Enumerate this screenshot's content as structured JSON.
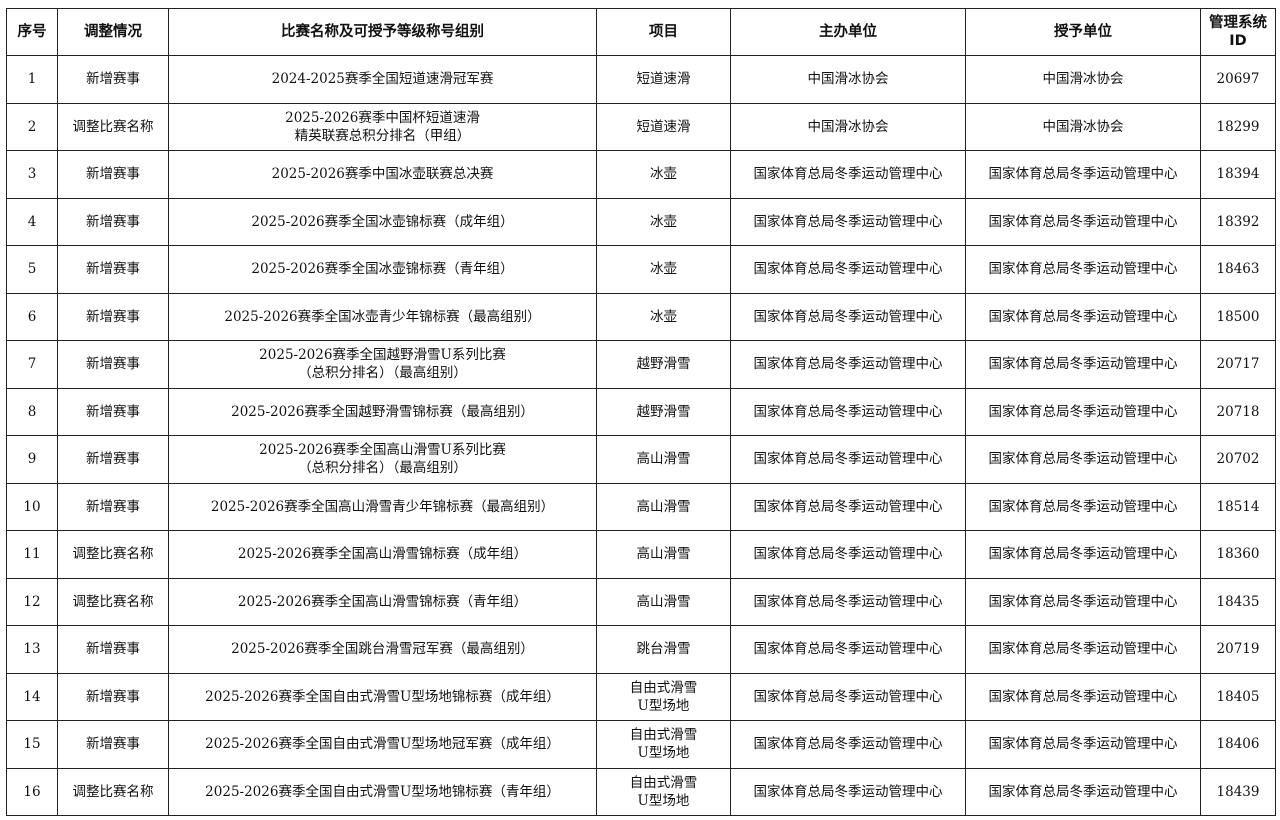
{
  "table": {
    "headers": [
      "序号",
      "调整情况",
      "比赛名称及可授予等级称号组别",
      "项目",
      "主办单位",
      "授予单位",
      "管理系统\nID"
    ],
    "rows": [
      [
        "1",
        "新增赛事",
        "2024-2025赛季全国短道速滑冠军赛",
        "短道速滑",
        "中国滑冰协会",
        "中国滑冰协会",
        "20697"
      ],
      [
        "2",
        "调整比赛名称",
        "2025-2026赛季中国杯短道速滑\n精英联赛总积分排名（甲组）",
        "短道速滑",
        "中国滑冰协会",
        "中国滑冰协会",
        "18299"
      ],
      [
        "3",
        "新增赛事",
        "2025-2026赛季中国冰壶联赛总决赛",
        "冰壶",
        "国家体育总局冬季运动管理中心",
        "国家体育总局冬季运动管理中心",
        "18394"
      ],
      [
        "4",
        "新增赛事",
        "2025-2026赛季全国冰壶锦标赛（成年组）",
        "冰壶",
        "国家体育总局冬季运动管理中心",
        "国家体育总局冬季运动管理中心",
        "18392"
      ],
      [
        "5",
        "新增赛事",
        "2025-2026赛季全国冰壶锦标赛（青年组）",
        "冰壶",
        "国家体育总局冬季运动管理中心",
        "国家体育总局冬季运动管理中心",
        "18463"
      ],
      [
        "6",
        "新增赛事",
        "2025-2026赛季全国冰壶青少年锦标赛（最高组别）",
        "冰壶",
        "国家体育总局冬季运动管理中心",
        "国家体育总局冬季运动管理中心",
        "18500"
      ],
      [
        "7",
        "新增赛事",
        "2025-2026赛季全国越野滑雪U系列比赛\n（总积分排名）（最高组别）",
        "越野滑雪",
        "国家体育总局冬季运动管理中心",
        "国家体育总局冬季运动管理中心",
        "20717"
      ],
      [
        "8",
        "新增赛事",
        "2025-2026赛季全国越野滑雪锦标赛（最高组别）",
        "越野滑雪",
        "国家体育总局冬季运动管理中心",
        "国家体育总局冬季运动管理中心",
        "20718"
      ],
      [
        "9",
        "新增赛事",
        "2025-2026赛季全国高山滑雪U系列比赛\n（总积分排名）（最高组别）",
        "高山滑雪",
        "国家体育总局冬季运动管理中心",
        "国家体育总局冬季运动管理中心",
        "20702"
      ],
      [
        "10",
        "新增赛事",
        "2025-2026赛季全国高山滑雪青少年锦标赛（最高组别）",
        "高山滑雪",
        "国家体育总局冬季运动管理中心",
        "国家体育总局冬季运动管理中心",
        "18514"
      ],
      [
        "11",
        "调整比赛名称",
        "2025-2026赛季全国高山滑雪锦标赛（成年组）",
        "高山滑雪",
        "国家体育总局冬季运动管理中心",
        "国家体育总局冬季运动管理中心",
        "18360"
      ],
      [
        "12",
        "调整比赛名称",
        "2025-2026赛季全国高山滑雪锦标赛（青年组）",
        "高山滑雪",
        "国家体育总局冬季运动管理中心",
        "国家体育总局冬季运动管理中心",
        "18435"
      ],
      [
        "13",
        "新增赛事",
        "2025-2026赛季全国跳台滑雪冠军赛（最高组别）",
        "跳台滑雪",
        "国家体育总局冬季运动管理中心",
        "国家体育总局冬季运动管理中心",
        "20719"
      ],
      [
        "14",
        "新增赛事",
        "2025-2026赛季全国自由式滑雪U型场地锦标赛（成年组）",
        "自由式滑雪\nU型场地",
        "国家体育总局冬季运动管理中心",
        "国家体育总局冬季运动管理中心",
        "18405"
      ],
      [
        "15",
        "新增赛事",
        "2025-2026赛季全国自由式滑雪U型场地冠军赛（成年组）",
        "自由式滑雪\nU型场地",
        "国家体育总局冬季运动管理中心",
        "国家体育总局冬季运动管理中心",
        "18406"
      ],
      [
        "16",
        "调整比赛名称",
        "2025-2026赛季全国自由式滑雪U型场地锦标赛（青年组）",
        "自由式滑雪\nU型场地",
        "国家体育总局冬季运动管理中心",
        "国家体育总局冬季运动管理中心",
        "18439"
      ]
    ]
  }
}
